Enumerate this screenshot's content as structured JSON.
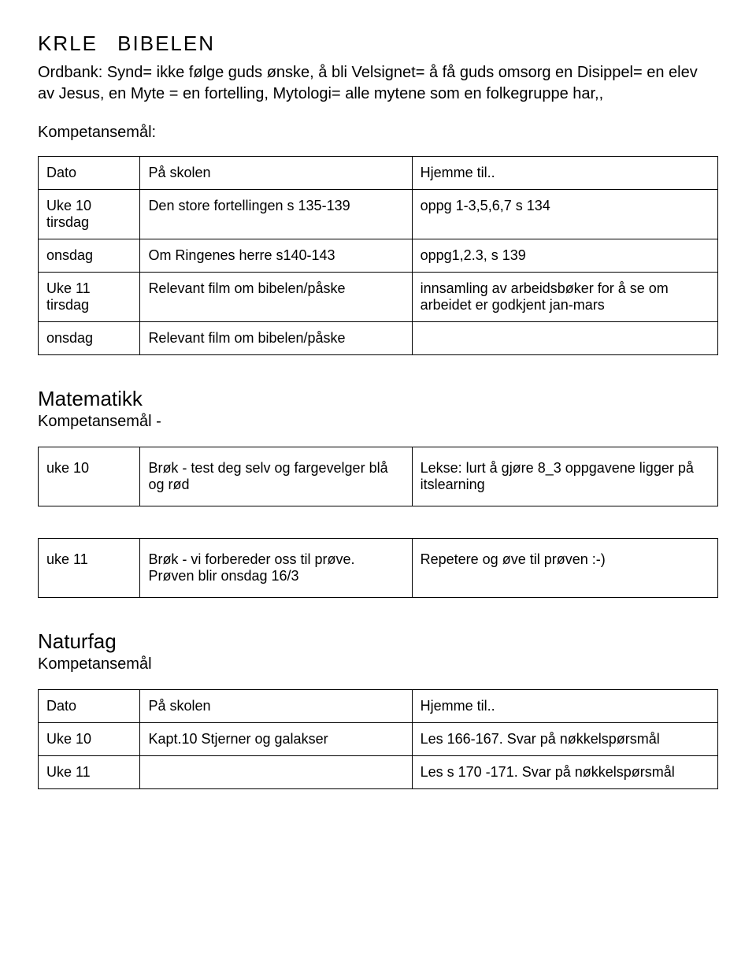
{
  "krle": {
    "title1": "KRLE",
    "title2": "BIBELEN",
    "paragraph": "Ordbank: Synd= ikke følge guds ønske, å bli Velsignet= å få guds omsorg en Disippel= en elev av Jesus, en Myte = en fortelling, Mytologi= alle mytene som en folkegruppe har,,",
    "komp_label": "Kompetansemål:",
    "header": {
      "c1": "Dato",
      "c2": "På skolen",
      "c3": "Hjemme til.."
    },
    "rows": [
      {
        "c1": "Uke 10 tirsdag",
        "c2": "Den store fortellingen s 135-139",
        "c3": "oppg 1-3,5,6,7 s 134"
      },
      {
        "c1": "onsdag",
        "c2": "Om Ringenes herre s140-143",
        "c3": "oppg1,2.3, s 139"
      },
      {
        "c1": "Uke 11 tirsdag",
        "c2": "Relevant film om bibelen/påske",
        "c3": "innsamling av arbeidsbøker for å se om arbeidet er godkjent jan-mars"
      },
      {
        "c1": "onsdag",
        "c2": "Relevant film om bibelen/påske",
        "c3": ""
      }
    ]
  },
  "math": {
    "heading": "Matematikk",
    "sub": "Kompetansemål -",
    "rows": [
      {
        "c1": "uke 10",
        "c2": "Brøk - test deg selv og fargevelger blå og rød",
        "c3": "Lekse: lurt å gjøre 8_3 oppgavene ligger på itslearning"
      },
      {
        "c1": "uke 11",
        "c2": "Brøk - vi forbereder oss til prøve. Prøven blir onsdag 16/3",
        "c3": "Repetere og øve til prøven :-)"
      }
    ]
  },
  "natur": {
    "heading": "Naturfag",
    "sub": "Kompetansemål",
    "header": {
      "c1": "Dato",
      "c2": "På skolen",
      "c3": "Hjemme til.."
    },
    "rows": [
      {
        "c1": "Uke 10",
        "c2": "Kapt.10 Stjerner og galakser",
        "c3": "Les 166-167. Svar på nøkkelspørsmål"
      },
      {
        "c1": "Uke 11",
        "c2": "",
        "c3": "Les s 170 -171. Svar på nøkkelspørsmål"
      }
    ]
  }
}
